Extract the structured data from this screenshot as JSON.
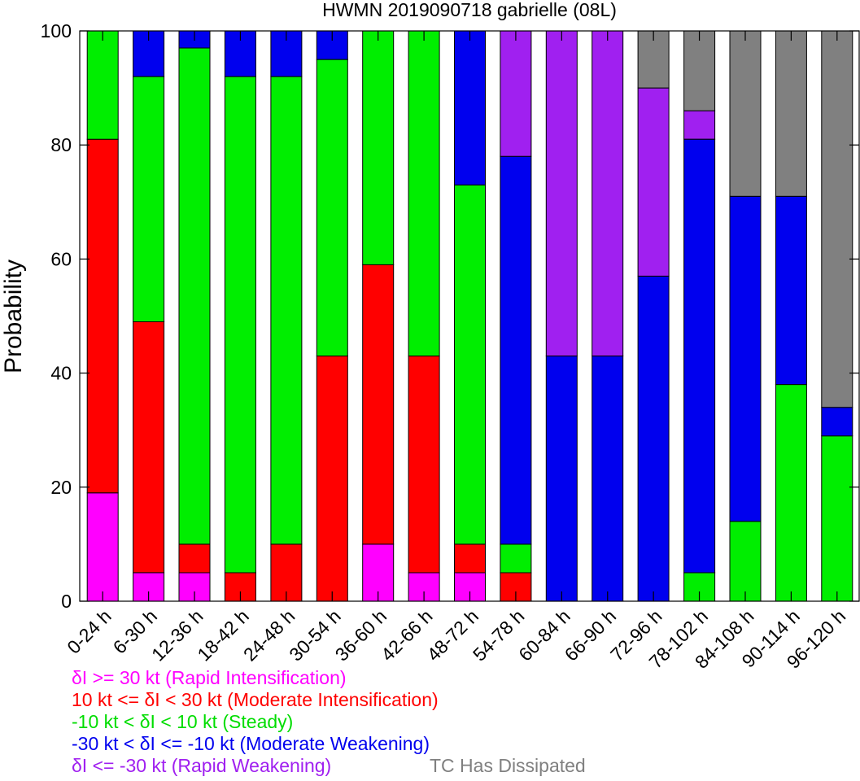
{
  "chart_data": {
    "type": "stacked-bar",
    "title": "HWMN 2019090718 gabrielle (08L)",
    "ylabel": "Probability",
    "xlabel": "",
    "ylim": [
      0,
      100
    ],
    "yticks": [
      "0",
      "20",
      "40",
      "60",
      "80",
      "100"
    ],
    "categories": [
      "0-24 h",
      "6-30 h",
      "12-36 h",
      "18-42 h",
      "24-48 h",
      "30-54 h",
      "36-60 h",
      "42-66 h",
      "48-72 h",
      "54-78 h",
      "60-84 h",
      "66-90 h",
      "72-96 h",
      "78-102 h",
      "84-108 h",
      "90-114 h",
      "96-120 h"
    ],
    "series": [
      {
        "key": "ri",
        "color": "#ff00ff",
        "values": [
          19,
          5,
          5,
          0,
          0,
          0,
          10,
          5,
          5,
          0,
          0,
          0,
          0,
          0,
          0,
          0,
          0
        ]
      },
      {
        "key": "mi",
        "color": "#ff0000",
        "values": [
          62,
          44,
          5,
          5,
          10,
          43,
          49,
          38,
          5,
          5,
          0,
          0,
          0,
          0,
          0,
          0,
          0
        ]
      },
      {
        "key": "st",
        "color": "#00ee00",
        "values": [
          19,
          43,
          87,
          87,
          82,
          52,
          41,
          57,
          63,
          5,
          0,
          0,
          0,
          5,
          14,
          38,
          29
        ]
      },
      {
        "key": "mw",
        "color": "#0000ee",
        "values": [
          0,
          8,
          3,
          8,
          8,
          5,
          0,
          0,
          27,
          68,
          43,
          43,
          57,
          76,
          57,
          33,
          5
        ]
      },
      {
        "key": "rw",
        "color": "#a020f0",
        "values": [
          0,
          0,
          0,
          0,
          0,
          0,
          0,
          0,
          0,
          22,
          57,
          57,
          33,
          5,
          0,
          0,
          0
        ]
      },
      {
        "key": "dis",
        "color": "#808080",
        "values": [
          0,
          0,
          0,
          0,
          0,
          0,
          0,
          0,
          0,
          0,
          0,
          0,
          10,
          14,
          29,
          29,
          66
        ]
      }
    ],
    "legend": [
      {
        "label": "δI >= 30 kt (Rapid Intensification)",
        "color": "#ff00ff"
      },
      {
        "label": "10 kt <= δI < 30 kt (Moderate Intensification)",
        "color": "#ff0000"
      },
      {
        "label": "-10 kt < δI < 10 kt (Steady)",
        "color": "#00ee00"
      },
      {
        "label": "-30 kt < δI <= -10 kt (Moderate Weakening)",
        "color": "#0000ee"
      },
      {
        "label": "δI <= -30 kt (Rapid Weakening)",
        "color": "#a020f0"
      },
      {
        "label": "TC Has Dissipated",
        "color": "#808080"
      }
    ]
  }
}
